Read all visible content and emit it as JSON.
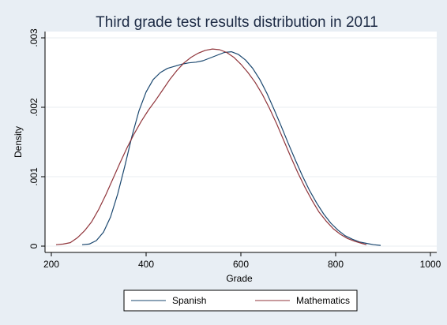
{
  "chart_data": {
    "type": "line",
    "title": "Third grade test results distribution in 2011",
    "xlabel": "Grade",
    "ylabel": "Density",
    "xlim": [
      200,
      1000
    ],
    "ylim": [
      0,
      0.003
    ],
    "x_ticks": [
      200,
      400,
      600,
      800,
      1000
    ],
    "x_tick_labels": [
      "200",
      "400",
      "600",
      "800",
      "1000"
    ],
    "y_ticks": [
      0,
      0.001,
      0.002,
      0.003
    ],
    "y_tick_labels": [
      "0",
      ".001",
      ".002",
      ".003"
    ],
    "grid": true,
    "legend_position": "bottom",
    "series": [
      {
        "name": "Spanish",
        "color": "#1a476f",
        "points": [
          [
            265,
            2e-05
          ],
          [
            280,
            3e-05
          ],
          [
            295,
            8e-05
          ],
          [
            310,
            0.0002
          ],
          [
            325,
            0.00042
          ],
          [
            340,
            0.00075
          ],
          [
            355,
            0.00115
          ],
          [
            370,
            0.00158
          ],
          [
            385,
            0.00195
          ],
          [
            400,
            0.00222
          ],
          [
            415,
            0.0024
          ],
          [
            430,
            0.0025
          ],
          [
            445,
            0.00256
          ],
          [
            460,
            0.00259
          ],
          [
            475,
            0.00262
          ],
          [
            490,
            0.00264
          ],
          [
            505,
            0.00265
          ],
          [
            520,
            0.00267
          ],
          [
            535,
            0.00271
          ],
          [
            550,
            0.00275
          ],
          [
            565,
            0.00279
          ],
          [
            580,
            0.0028
          ],
          [
            595,
            0.00276
          ],
          [
            610,
            0.00268
          ],
          [
            625,
            0.00256
          ],
          [
            640,
            0.0024
          ],
          [
            655,
            0.0022
          ],
          [
            670,
            0.00197
          ],
          [
            685,
            0.00173
          ],
          [
            700,
            0.00148
          ],
          [
            715,
            0.00124
          ],
          [
            730,
            0.00101
          ],
          [
            745,
            0.0008
          ],
          [
            760,
            0.00062
          ],
          [
            775,
            0.00046
          ],
          [
            790,
            0.00033
          ],
          [
            805,
            0.00023
          ],
          [
            820,
            0.00015
          ],
          [
            835,
            0.0001
          ],
          [
            850,
            6e-05
          ],
          [
            865,
            4e-05
          ],
          [
            880,
            2e-05
          ],
          [
            895,
            1e-05
          ]
        ]
      },
      {
        "name": "Mathematics",
        "color": "#90353b",
        "points": [
          [
            210,
            2e-05
          ],
          [
            225,
            3e-05
          ],
          [
            240,
            5e-05
          ],
          [
            255,
            0.00012
          ],
          [
            270,
            0.00022
          ],
          [
            285,
            0.00035
          ],
          [
            300,
            0.00053
          ],
          [
            315,
            0.00074
          ],
          [
            330,
            0.00097
          ],
          [
            345,
            0.0012
          ],
          [
            360,
            0.00142
          ],
          [
            375,
            0.00162
          ],
          [
            390,
            0.0018
          ],
          [
            405,
            0.00196
          ],
          [
            420,
            0.0021
          ],
          [
            435,
            0.00225
          ],
          [
            450,
            0.0024
          ],
          [
            465,
            0.00253
          ],
          [
            480,
            0.00264
          ],
          [
            495,
            0.00272
          ],
          [
            510,
            0.00278
          ],
          [
            525,
            0.00282
          ],
          [
            540,
            0.00284
          ],
          [
            555,
            0.00283
          ],
          [
            570,
            0.00279
          ],
          [
            585,
            0.00272
          ],
          [
            600,
            0.00262
          ],
          [
            615,
            0.0025
          ],
          [
            630,
            0.00236
          ],
          [
            645,
            0.00219
          ],
          [
            660,
            0.00199
          ],
          [
            675,
            0.00177
          ],
          [
            690,
            0.00153
          ],
          [
            705,
            0.00129
          ],
          [
            720,
            0.00106
          ],
          [
            735,
            0.00085
          ],
          [
            750,
            0.00066
          ],
          [
            765,
            0.00049
          ],
          [
            780,
            0.00036
          ],
          [
            795,
            0.00025
          ],
          [
            810,
            0.00017
          ],
          [
            825,
            0.00011
          ],
          [
            840,
            7e-05
          ],
          [
            855,
            4e-05
          ],
          [
            865,
            2e-05
          ]
        ]
      }
    ]
  }
}
